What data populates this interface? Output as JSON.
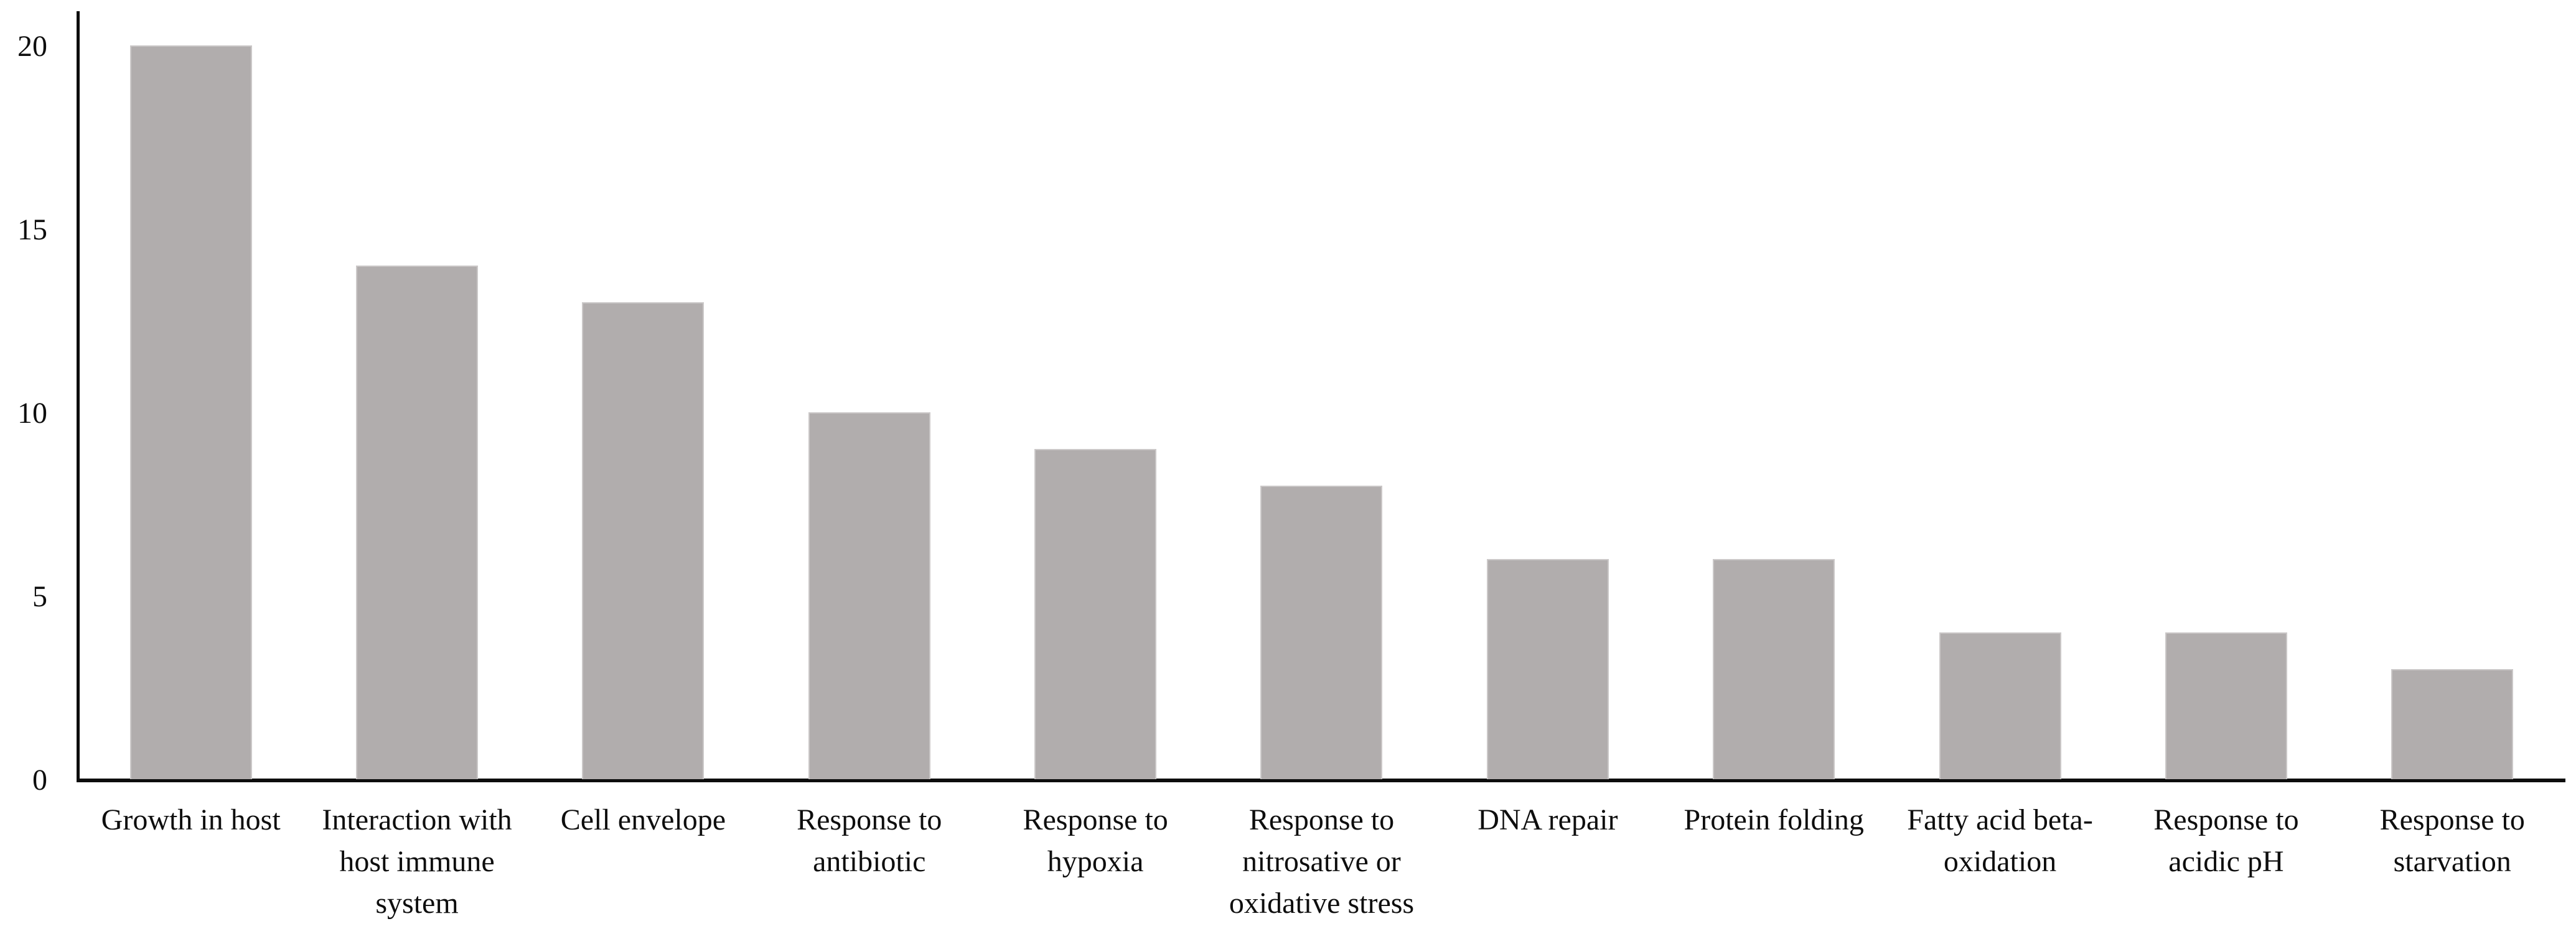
{
  "chart_data": {
    "type": "bar",
    "title": "",
    "xlabel": "",
    "ylabel": "",
    "categories": [
      "Growth in host",
      "Interaction with\nhost immune\nsystem",
      "Cell envelope",
      "Response to\nantibiotic",
      "Response to\nhypoxia",
      "Response to\nnitrosative or\noxidative stress",
      "DNA repair",
      "Protein folding",
      "Fatty acid beta-\noxidation",
      "Response to\nacidic pH",
      "Response to\nstarvation"
    ],
    "values": [
      20,
      14,
      13,
      10,
      9,
      8,
      6,
      6,
      4,
      4,
      3
    ],
    "yticks": [
      {
        "label": "20",
        "value": 20
      },
      {
        "label": "15",
        "value": 15
      },
      {
        "label": "10",
        "value": 10
      },
      {
        "label": "5",
        "value": 5
      },
      {
        "label": "0",
        "value": 0
      }
    ],
    "ylim": [
      0,
      21
    ],
    "grid": false,
    "legend_position": "none",
    "bar_color": "#b1adad",
    "bar_edge_color": "#cbc8c8",
    "axis_color": "#0d0d0d",
    "text_color": "#0e0e0e"
  }
}
